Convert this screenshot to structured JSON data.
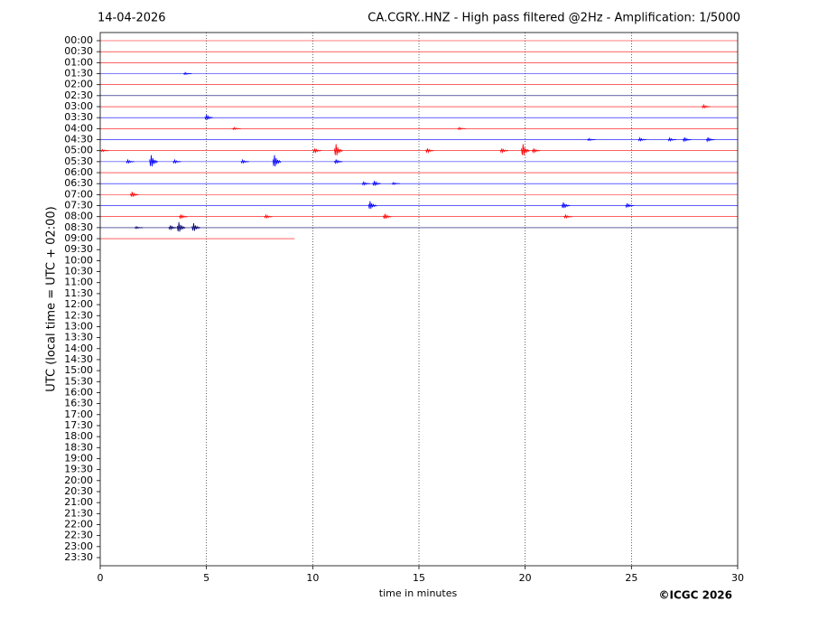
{
  "chart_data": {
    "type": "helicorder",
    "date": "14-04-2026",
    "title": "CA.CGRY..HNZ - High pass filtered @2Hz - Amplification: 1/5000",
    "x_label": "time in minutes",
    "y_label": "UTC (local time = UTC + 02:00)",
    "copyright": "©ICGC 2026",
    "categories": [
      "00:00",
      "00:30",
      "01:00",
      "01:30",
      "02:00",
      "02:30",
      "03:00",
      "03:30",
      "04:00",
      "04:30",
      "05:00",
      "05:30",
      "06:00",
      "06:30",
      "07:00",
      "07:30",
      "08:00",
      "08:30",
      "09:00",
      "09:30",
      "10:00",
      "10:30",
      "11:00",
      "11:30",
      "12:00",
      "12:30",
      "13:00",
      "13:30",
      "14:00",
      "14:30",
      "15:00",
      "15:30",
      "16:00",
      "16:30",
      "17:00",
      "17:30",
      "18:00",
      "18:30",
      "19:00",
      "19:30",
      "20:00",
      "20:30",
      "21:00",
      "21:30",
      "22:00",
      "22:30",
      "23:00",
      "23:30"
    ],
    "xlim": [
      0,
      30
    ],
    "xticks": [
      0,
      5,
      10,
      15,
      20,
      25,
      30
    ],
    "grid": true,
    "traces": [
      {
        "color": "#ff0000",
        "end": 30,
        "bursts": []
      },
      {
        "color": "#ff0000",
        "end": 30,
        "bursts": []
      },
      {
        "color": "#ff0000",
        "end": 30,
        "bursts": []
      },
      {
        "color": "#0000ff",
        "end": 30,
        "bursts": [
          {
            "x": 4.0,
            "amp": 0.1
          }
        ]
      },
      {
        "color": "#ff0000",
        "end": 30,
        "bursts": []
      },
      {
        "color": "#00006e",
        "end": 30,
        "bursts": []
      },
      {
        "color": "#ff0000",
        "end": 30,
        "bursts": [
          {
            "x": 28.4,
            "amp": 0.15
          }
        ]
      },
      {
        "color": "#0000ff",
        "end": 30,
        "bursts": [
          {
            "x": 5.0,
            "amp": 0.25
          }
        ]
      },
      {
        "color": "#ff0000",
        "end": 30,
        "bursts": [
          {
            "x": 6.3,
            "amp": 0.1
          },
          {
            "x": 16.9,
            "amp": 0.1
          }
        ]
      },
      {
        "color": "#0000ff",
        "end": 30,
        "bursts": [
          {
            "x": 23.0,
            "amp": 0.1
          },
          {
            "x": 25.4,
            "amp": 0.15
          },
          {
            "x": 26.8,
            "amp": 0.15
          },
          {
            "x": 27.5,
            "amp": 0.2
          },
          {
            "x": 28.6,
            "amp": 0.2
          }
        ]
      },
      {
        "color": "#ff0000",
        "end": 30,
        "bursts": [
          {
            "x": 0.1,
            "amp": 0.1
          },
          {
            "x": 10.1,
            "amp": 0.2
          },
          {
            "x": 11.1,
            "amp": 0.6
          },
          {
            "x": 15.4,
            "amp": 0.2
          },
          {
            "x": 18.9,
            "amp": 0.2
          },
          {
            "x": 19.9,
            "amp": 0.6
          },
          {
            "x": 20.4,
            "amp": 0.2
          }
        ]
      },
      {
        "color": "#0000ff",
        "end": 30,
        "bursts": [
          {
            "x": 1.3,
            "amp": 0.15
          },
          {
            "x": 2.4,
            "amp": 0.6
          },
          {
            "x": 3.5,
            "amp": 0.15
          },
          {
            "x": 6.7,
            "amp": 0.15
          },
          {
            "x": 8.2,
            "amp": 0.6
          },
          {
            "x": 11.1,
            "amp": 0.2
          }
        ]
      },
      {
        "color": "#ff0000",
        "end": 30,
        "bursts": []
      },
      {
        "color": "#0000ff",
        "end": 30,
        "bursts": [
          {
            "x": 12.4,
            "amp": 0.15
          },
          {
            "x": 12.9,
            "amp": 0.25
          },
          {
            "x": 13.8,
            "amp": 0.1
          }
        ]
      },
      {
        "color": "#ff0000",
        "end": 30,
        "bursts": [
          {
            "x": 1.5,
            "amp": 0.25
          }
        ]
      },
      {
        "color": "#0000ff",
        "end": 30,
        "bursts": [
          {
            "x": 12.7,
            "amp": 0.4
          },
          {
            "x": 21.8,
            "amp": 0.3
          },
          {
            "x": 24.8,
            "amp": 0.2
          }
        ]
      },
      {
        "color": "#ff0000",
        "end": 30,
        "bursts": [
          {
            "x": 3.8,
            "amp": 0.2
          },
          {
            "x": 7.8,
            "amp": 0.15
          },
          {
            "x": 13.4,
            "amp": 0.25
          },
          {
            "x": 21.9,
            "amp": 0.15
          }
        ]
      },
      {
        "color": "#00006e",
        "end": 30,
        "bursts": [
          {
            "x": 1.7,
            "amp": 0.1
          },
          {
            "x": 3.3,
            "amp": 0.2
          },
          {
            "x": 3.7,
            "amp": 0.5
          },
          {
            "x": 4.4,
            "amp": 0.4
          }
        ]
      },
      {
        "color": "#ff0000",
        "end": 9.15,
        "bursts": []
      }
    ]
  }
}
